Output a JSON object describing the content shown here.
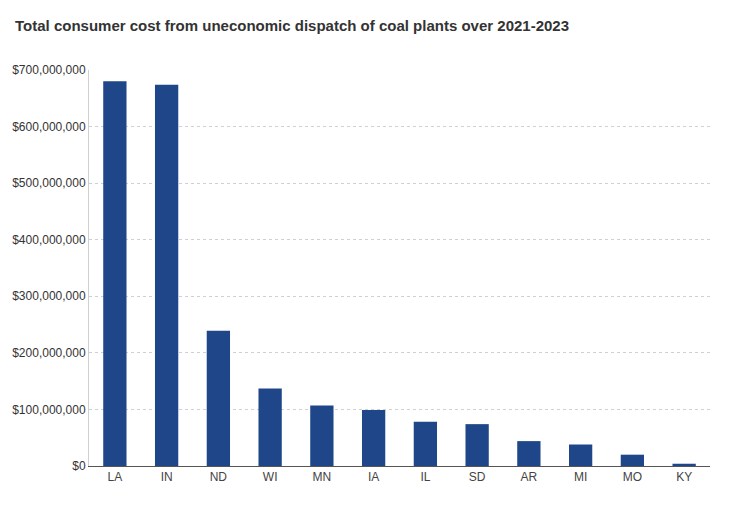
{
  "chart_data": {
    "type": "bar",
    "title": "Total consumer cost from uneconomic dispatch of coal plants over 2021-2023",
    "categories": [
      "LA",
      "IN",
      "ND",
      "WI",
      "MN",
      "IA",
      "IL",
      "SD",
      "AR",
      "MI",
      "MO",
      "KY"
    ],
    "values": [
      680000000,
      674000000,
      239000000,
      137000000,
      107000000,
      99000000,
      78000000,
      74000000,
      44000000,
      38000000,
      20000000,
      4000000
    ],
    "color": "#1f4689",
    "ylim": [
      0,
      700000000
    ],
    "yticks": [
      {
        "value": 0,
        "label": "$0"
      },
      {
        "value": 100000000,
        "label": "$100,000,000"
      },
      {
        "value": 200000000,
        "label": "$200,000,000"
      },
      {
        "value": 300000000,
        "label": "$300,000,000"
      },
      {
        "value": 400000000,
        "label": "$400,000,000"
      },
      {
        "value": 500000000,
        "label": "$500,000,000"
      },
      {
        "value": 600000000,
        "label": "$600,000,000"
      },
      {
        "value": 700000000,
        "label": "$700,000,000"
      }
    ],
    "grid": true
  }
}
